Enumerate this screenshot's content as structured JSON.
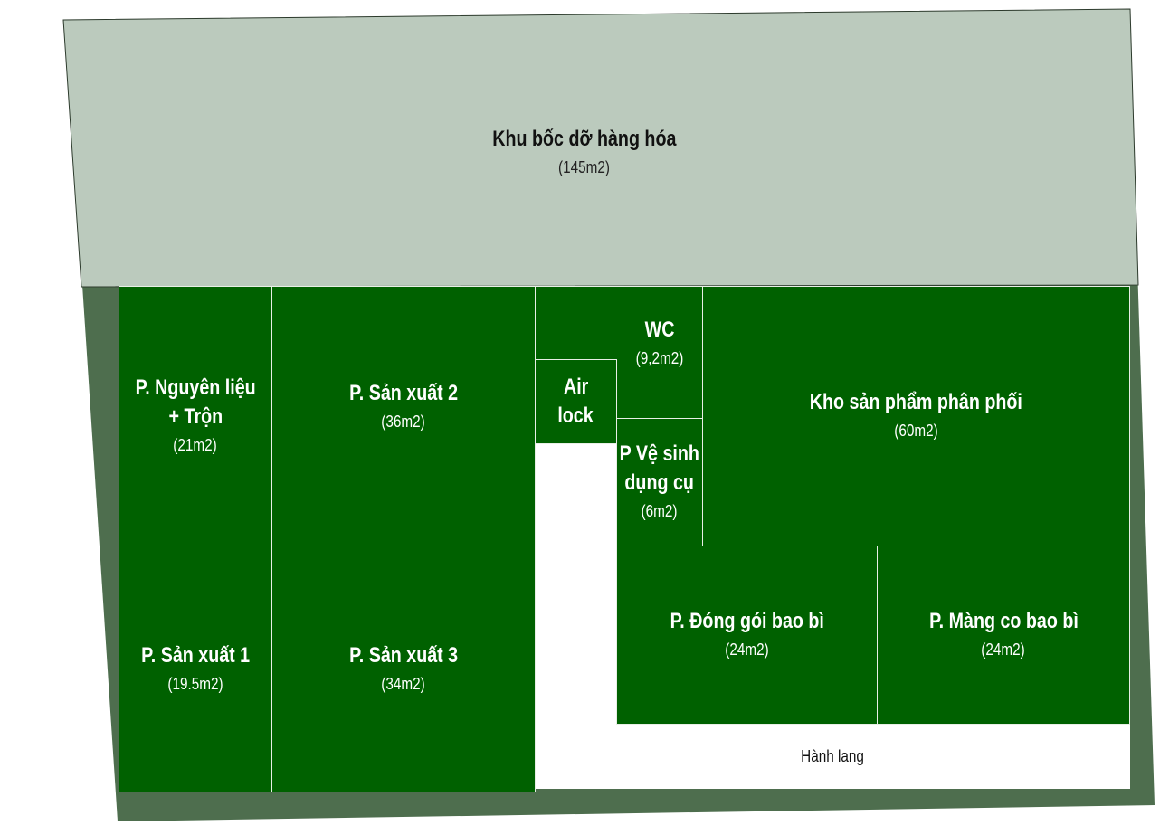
{
  "colors": {
    "room_fill": "#006100",
    "loading_fill": "#bbcabd",
    "outer_frame": "#4e6e4e",
    "room_text": "#ffffff"
  },
  "loading_zone": {
    "name": "Khu bốc dỡ hàng hóa",
    "area": "(145m2)"
  },
  "rooms": {
    "nguyen_lieu": {
      "name_line1": "P. Nguyên liệu",
      "name_line2": "+ Trộn",
      "area": "(21m2)"
    },
    "san_xuat_2": {
      "name": "P. Sản xuất 2",
      "area": "(36m2)"
    },
    "airlock": {
      "name_line1": "Air",
      "name_line2": "lock"
    },
    "wc": {
      "name": "WC",
      "area": "(9,2m2)"
    },
    "ve_sinh": {
      "name_line1": "P Vệ sinh",
      "name_line2": "dụng cụ",
      "area": "(6m2)"
    },
    "kho": {
      "name": "Kho sản phẩm phân phối",
      "area": "(60m2)"
    },
    "san_xuat_1": {
      "name": "P. Sản xuất 1",
      "area": "(19.5m2)"
    },
    "san_xuat_3": {
      "name": "P. Sản xuất 3",
      "area": "(34m2)"
    },
    "dong_goi": {
      "name": "P. Đóng gói bao bì",
      "area": "(24m2)"
    },
    "mang_co": {
      "name": "P. Màng co bao bì",
      "area": "(24m2)"
    }
  },
  "corridor": {
    "label": "Hành lang"
  }
}
